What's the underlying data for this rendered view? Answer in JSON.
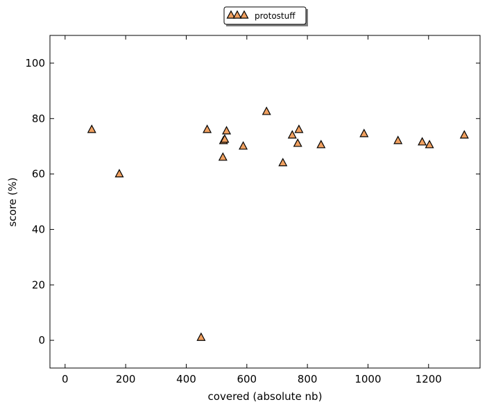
{
  "chart_data": {
    "type": "scatter",
    "xlabel": "covered (absolute nb)",
    "ylabel": "score (%)",
    "xlim": [
      -50,
      1370
    ],
    "ylim": [
      -10,
      110
    ],
    "xticks": [
      0,
      200,
      400,
      600,
      800,
      1000,
      1200
    ],
    "yticks": [
      0,
      20,
      40,
      60,
      80,
      100
    ],
    "grid": false,
    "legend_position": "top-center-outside",
    "series": [
      {
        "name": "protostuff",
        "marker": "triangle-up",
        "color": "#f0a060",
        "edge_color": "#000000",
        "points": [
          {
            "x": 88,
            "y": 76
          },
          {
            "x": 179,
            "y": 60
          },
          {
            "x": 449,
            "y": 1
          },
          {
            "x": 469,
            "y": 76
          },
          {
            "x": 521,
            "y": 66
          },
          {
            "x": 523,
            "y": 72
          },
          {
            "x": 527,
            "y": 72.5
          },
          {
            "x": 533,
            "y": 75.5
          },
          {
            "x": 588,
            "y": 70
          },
          {
            "x": 665,
            "y": 82.5
          },
          {
            "x": 719,
            "y": 64
          },
          {
            "x": 750,
            "y": 74
          },
          {
            "x": 768,
            "y": 71
          },
          {
            "x": 772,
            "y": 76
          },
          {
            "x": 845,
            "y": 70.5
          },
          {
            "x": 987,
            "y": 74.5
          },
          {
            "x": 1099,
            "y": 72
          },
          {
            "x": 1179,
            "y": 71.5
          },
          {
            "x": 1203,
            "y": 70.5
          },
          {
            "x": 1318,
            "y": 74
          }
        ]
      }
    ]
  }
}
